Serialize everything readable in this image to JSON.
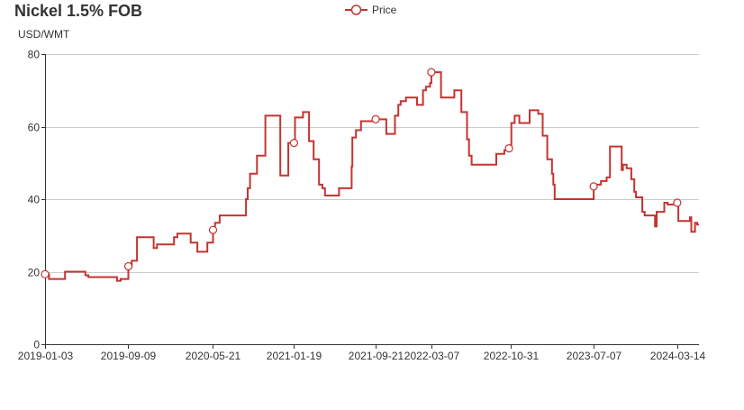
{
  "chart_data": {
    "type": "line",
    "title": "Nickel 1.5% FOB",
    "ylabel": "USD/WMT",
    "ylim": [
      0,
      80
    ],
    "y_ticks": [
      0,
      20,
      40,
      60,
      80
    ],
    "x_range": [
      "2019-01-03",
      "2024-05-18"
    ],
    "x_ticks": [
      "2019-01-03",
      "2019-09-09",
      "2020-05-21",
      "2021-01-19",
      "2021-09-21",
      "2022-03-07",
      "2022-10-31",
      "2023-07-07",
      "2024-03-14"
    ],
    "grid": true,
    "legend": "top-center",
    "line_color": "#c23531",
    "series": [
      {
        "name": "Price",
        "step": true,
        "points": [
          [
            "2019-01-03",
            19.3
          ],
          [
            "2019-01-15",
            18.0
          ],
          [
            "2019-03-04",
            20.0
          ],
          [
            "2019-05-04",
            19.0
          ],
          [
            "2019-05-13",
            18.5
          ],
          [
            "2019-08-07",
            17.5
          ],
          [
            "2019-08-18",
            18.0
          ],
          [
            "2019-09-10",
            21.5
          ],
          [
            "2019-09-20",
            23.0
          ],
          [
            "2019-10-06",
            29.5
          ],
          [
            "2019-11-25",
            26.5
          ],
          [
            "2019-12-05",
            27.5
          ],
          [
            "2020-01-25",
            29.5
          ],
          [
            "2020-02-04",
            30.5
          ],
          [
            "2020-03-15",
            28.0
          ],
          [
            "2020-04-04",
            25.5
          ],
          [
            "2020-05-04",
            28.0
          ],
          [
            "2020-05-21",
            31.5
          ],
          [
            "2020-05-27",
            33.5
          ],
          [
            "2020-06-10",
            35.5
          ],
          [
            "2020-08-28",
            40.0
          ],
          [
            "2020-09-02",
            43.0
          ],
          [
            "2020-09-09",
            47.0
          ],
          [
            "2020-09-30",
            52.0
          ],
          [
            "2020-10-25",
            63.0
          ],
          [
            "2020-12-09",
            46.5
          ],
          [
            "2021-01-02",
            55.5
          ],
          [
            "2021-01-19",
            55.5
          ],
          [
            "2021-01-22",
            62.5
          ],
          [
            "2021-02-15",
            64.0
          ],
          [
            "2021-03-05",
            56.0
          ],
          [
            "2021-03-19",
            51.0
          ],
          [
            "2021-04-04",
            44.0
          ],
          [
            "2021-04-14",
            43.0
          ],
          [
            "2021-04-22",
            41.0
          ],
          [
            "2021-06-03",
            43.0
          ],
          [
            "2021-07-11",
            49.0
          ],
          [
            "2021-07-13",
            57.0
          ],
          [
            "2021-07-24",
            59.0
          ],
          [
            "2021-08-08",
            61.5
          ],
          [
            "2021-09-21",
            62.0
          ],
          [
            "2021-10-23",
            58.0
          ],
          [
            "2021-11-18",
            63.0
          ],
          [
            "2021-11-28",
            66.0
          ],
          [
            "2021-12-05",
            67.0
          ],
          [
            "2021-12-21",
            68.0
          ],
          [
            "2022-01-23",
            66.0
          ],
          [
            "2022-02-10",
            70.0
          ],
          [
            "2022-02-19",
            71.0
          ],
          [
            "2022-03-03",
            72.0
          ],
          [
            "2022-03-07",
            75.0
          ],
          [
            "2022-04-05",
            68.0
          ],
          [
            "2022-05-15",
            70.0
          ],
          [
            "2022-06-05",
            64.0
          ],
          [
            "2022-06-22",
            56.5
          ],
          [
            "2022-06-28",
            52.0
          ],
          [
            "2022-07-06",
            49.5
          ],
          [
            "2022-09-18",
            52.5
          ],
          [
            "2022-10-12",
            53.5
          ],
          [
            "2022-10-26",
            54.0
          ],
          [
            "2022-11-02",
            61.0
          ],
          [
            "2022-11-12",
            63.0
          ],
          [
            "2022-11-26",
            61.0
          ],
          [
            "2022-12-27",
            64.5
          ],
          [
            "2023-01-22",
            63.5
          ],
          [
            "2023-02-04",
            57.5
          ],
          [
            "2023-02-18",
            51.0
          ],
          [
            "2023-03-04",
            47.0
          ],
          [
            "2023-03-08",
            44.0
          ],
          [
            "2023-03-12",
            40.0
          ],
          [
            "2023-07-07",
            43.5
          ],
          [
            "2023-07-10",
            44.0
          ],
          [
            "2023-07-29",
            45.0
          ],
          [
            "2023-08-15",
            46.0
          ],
          [
            "2023-08-25",
            54.5
          ],
          [
            "2023-09-29",
            48.0
          ],
          [
            "2023-10-03",
            49.5
          ],
          [
            "2023-10-14",
            48.5
          ],
          [
            "2023-10-28",
            45.5
          ],
          [
            "2023-11-06",
            42.0
          ],
          [
            "2023-11-11",
            40.5
          ],
          [
            "2023-11-30",
            36.5
          ],
          [
            "2023-12-07",
            35.5
          ],
          [
            "2024-01-07",
            32.5
          ],
          [
            "2024-01-12",
            36.5
          ],
          [
            "2024-02-04",
            39.0
          ],
          [
            "2024-02-14",
            38.5
          ],
          [
            "2024-03-14",
            39.0
          ],
          [
            "2024-03-17",
            34.0
          ],
          [
            "2024-04-21",
            35.0
          ],
          [
            "2024-04-25",
            31.0
          ],
          [
            "2024-05-06",
            33.5
          ],
          [
            "2024-05-13",
            33.0
          ],
          [
            "2024-05-18",
            33.0
          ]
        ]
      }
    ],
    "markers": [
      [
        "2019-01-03",
        19.3
      ],
      [
        "2019-09-10",
        21.5
      ],
      [
        "2020-05-21",
        31.5
      ],
      [
        "2021-01-19",
        55.5
      ],
      [
        "2021-09-21",
        62.0
      ],
      [
        "2022-03-07",
        75.0
      ],
      [
        "2022-10-26",
        54.0
      ],
      [
        "2023-07-07",
        43.5
      ],
      [
        "2024-03-14",
        39.0
      ]
    ]
  }
}
